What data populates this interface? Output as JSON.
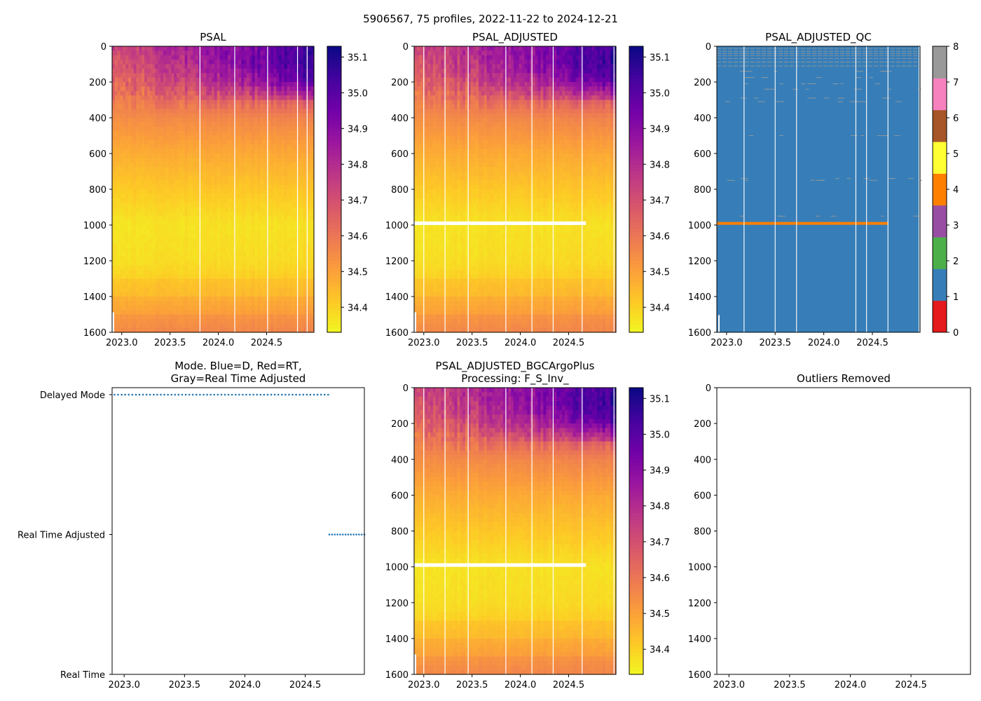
{
  "figure": {
    "suptitle": "5906567, 75 profiles, 2022-11-22 to 2024-12-21"
  },
  "colors": {
    "plasma": [
      "#f0f921",
      "#fdca26",
      "#fb9f3a",
      "#ed7953",
      "#d8576b",
      "#bd3786",
      "#9c179e",
      "#7201a8",
      "#46039f",
      "#0d0887"
    ],
    "qc": [
      "#e41a1c",
      "#377eb8",
      "#4daf4a",
      "#984ea3",
      "#ff7f00",
      "#ffff33",
      "#a65628",
      "#f781bf",
      "#999999"
    ],
    "mode_dots": "#1f77b4",
    "gap_lines": "#ffffff",
    "qc_speckle": "#999999",
    "qc_band": "#ff7f00"
  },
  "chart_data": [
    {
      "id": "psal",
      "type": "heatmap",
      "title": "PSAL",
      "xlabel": "",
      "ylabel": "",
      "xlim": [
        2022.9,
        2024.99
      ],
      "ylim": [
        1600,
        0
      ],
      "xticks": [
        "2023.0",
        "2023.5",
        "2024.0",
        "2024.5"
      ],
      "yticks": [
        "0",
        "200",
        "400",
        "600",
        "800",
        "1000",
        "1200",
        "1400",
        "1600"
      ],
      "colorbar": {
        "cmap": "plasma",
        "vmin": 34.33,
        "vmax": 35.13,
        "ticks": [
          "34.4",
          "34.5",
          "34.6",
          "34.7",
          "34.8",
          "34.9",
          "35.0",
          "35.1"
        ]
      },
      "gap_dates": [
        2023.81,
        2024.17,
        2024.51,
        2024.82,
        2024.92
      ],
      "salinity_profile": {
        "depth": [
          0,
          100,
          200,
          300,
          400,
          600,
          800,
          1000,
          1200,
          1400,
          1600
        ],
        "early": [
          34.75,
          34.7,
          34.66,
          34.6,
          34.55,
          34.48,
          34.42,
          34.37,
          34.38,
          34.43,
          34.5
        ],
        "late": [
          35.05,
          35.08,
          34.98,
          34.75,
          34.6,
          34.5,
          34.44,
          34.38,
          34.4,
          34.45,
          34.52
        ]
      }
    },
    {
      "id": "psal_adj",
      "type": "heatmap",
      "title": "PSAL_ADJUSTED",
      "xlim": [
        2022.9,
        2024.99
      ],
      "ylim": [
        1600,
        0
      ],
      "xticks": [
        "2023.0",
        "2023.5",
        "2024.0",
        "2024.5"
      ],
      "yticks": [
        "0",
        "200",
        "400",
        "600",
        "800",
        "1000",
        "1200",
        "1400",
        "1600"
      ],
      "colorbar": {
        "cmap": "plasma",
        "vmin": 34.33,
        "vmax": 35.13,
        "ticks": [
          "34.4",
          "34.5",
          "34.6",
          "34.7",
          "34.8",
          "34.9",
          "35.0",
          "35.1"
        ]
      },
      "gap_dates": [
        2023.0,
        2023.22,
        2023.46,
        2023.85,
        2024.12,
        2024.34,
        2024.64,
        2024.97
      ],
      "blank_band": {
        "depth": [
          980,
          1000
        ],
        "x_range": [
          2022.9,
          2024.68
        ]
      }
    },
    {
      "id": "psal_adj_qc",
      "type": "heatmap",
      "title": "PSAL_ADJUSTED_QC",
      "xlim": [
        2022.9,
        2024.99
      ],
      "ylim": [
        1600,
        0
      ],
      "xticks": [
        "2023.0",
        "2023.5",
        "2024.0",
        "2024.5"
      ],
      "yticks": [
        "0",
        "200",
        "400",
        "600",
        "800",
        "1000",
        "1200",
        "1400",
        "1600"
      ],
      "colorbar": {
        "cmap": "qc-categorical",
        "vmin": 0,
        "vmax": 8,
        "ticks": [
          "0",
          "1",
          "2",
          "3",
          "4",
          "5",
          "6",
          "7",
          "8"
        ]
      },
      "background_flag": 1,
      "flag4_band": {
        "depth": [
          983,
          998
        ],
        "x_range": [
          2022.9,
          2024.66
        ]
      },
      "flagged_depths": [
        12,
        28,
        40,
        52,
        68,
        88,
        110,
        140,
        175,
        210,
        240,
        290,
        310,
        500,
        740,
        750,
        950
      ],
      "gap_dates": [
        2023.18,
        2023.5,
        2023.72,
        2024.33,
        2024.44,
        2024.66,
        2024.98
      ]
    },
    {
      "id": "mode",
      "type": "scatter",
      "title": "Mode. Blue=D, Red=RT,\nGray=Real Time Adjusted",
      "xlim": [
        2022.9,
        2024.99
      ],
      "xticks": [
        "2023.0",
        "2023.5",
        "2024.0",
        "2024.5"
      ],
      "ycategories": [
        "Real Time",
        "Real Time Adjusted",
        "Delayed Mode"
      ],
      "series": [
        {
          "name": "Delayed Mode",
          "x_start": 2022.92,
          "x_end": 2024.69,
          "count": 61
        },
        {
          "name": "Real Time Adjusted",
          "x_start": 2024.7,
          "x_end": 2024.99,
          "count": 14
        }
      ]
    },
    {
      "id": "psal_bgc",
      "type": "heatmap",
      "title": "PSAL_ADJUSTED_BGCArgoPlus\nProcessing: F_S_Inv_",
      "xlim": [
        2022.9,
        2024.99
      ],
      "ylim": [
        1600,
        0
      ],
      "xticks": [
        "2023.0",
        "2023.5",
        "2024.0",
        "2024.5"
      ],
      "yticks": [
        "0",
        "200",
        "400",
        "600",
        "800",
        "1000",
        "1200",
        "1400",
        "1600"
      ],
      "colorbar": {
        "cmap": "plasma",
        "vmin": 34.33,
        "vmax": 35.13,
        "ticks": [
          "34.4",
          "34.5",
          "34.6",
          "34.7",
          "34.8",
          "34.9",
          "35.0",
          "35.1"
        ]
      },
      "gap_dates": [
        2023.0,
        2023.22,
        2023.46,
        2023.85,
        2024.12,
        2024.34,
        2024.64,
        2024.97
      ],
      "blank_band": {
        "depth": [
          980,
          1000
        ],
        "x_range": [
          2022.9,
          2024.68
        ]
      }
    },
    {
      "id": "outliers",
      "type": "scatter",
      "title": "Outliers Removed",
      "xlim": [
        2022.9,
        2024.99
      ],
      "ylim": [
        1600,
        0
      ],
      "xticks": [
        "2023.0",
        "2023.5",
        "2024.0",
        "2024.5"
      ],
      "yticks": [
        "0",
        "200",
        "400",
        "600",
        "800",
        "1000",
        "1200",
        "1400",
        "1600"
      ],
      "points": []
    }
  ]
}
